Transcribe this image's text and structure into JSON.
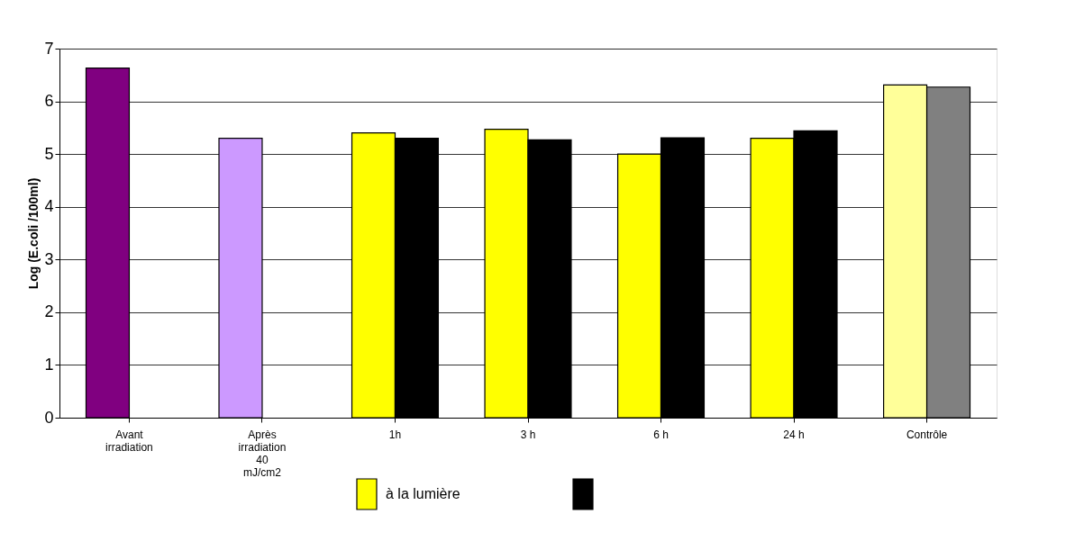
{
  "chart_data": {
    "type": "bar",
    "ylabel": "Log (E.coli /100ml)",
    "categories": [
      "Avant irradiation",
      "Après irradiation 40 mJ/cm2",
      "1h",
      "3 h",
      "6 h",
      "24 h",
      "Contrôle"
    ],
    "series": [
      {
        "name": "à la lumière",
        "color": "#ffff00",
        "colors": [
          "#800080",
          "#cc99ff",
          "#ffff00",
          "#ffff00",
          "#ffff00",
          "#ffff00",
          "#ffff99"
        ],
        "values": [
          6.63,
          5.3,
          5.4,
          5.47,
          5.0,
          5.3,
          6.31
        ]
      },
      {
        "color": "#000000",
        "colors": [
          null,
          null,
          "#000000",
          "#000000",
          "#000000",
          "#000000",
          "#808080"
        ],
        "values": [
          null,
          null,
          5.3,
          5.27,
          5.31,
          5.44,
          6.27
        ]
      }
    ],
    "ylim": [
      0,
      7
    ],
    "yticks": [
      0,
      1,
      2,
      3,
      4,
      5,
      6,
      7
    ],
    "grid": "y",
    "legend": "bottom"
  }
}
